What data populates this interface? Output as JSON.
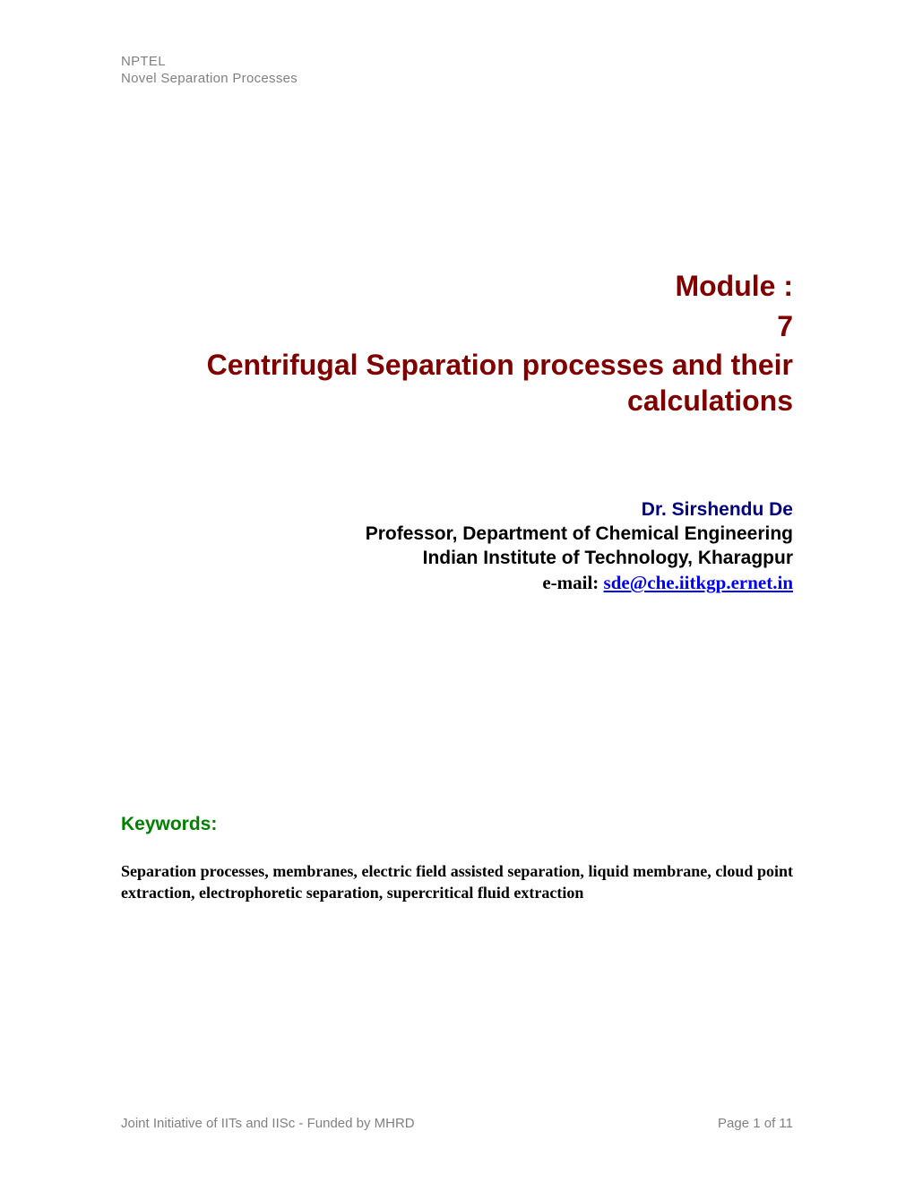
{
  "header": {
    "org": "NPTEL",
    "course": "Novel Separation Processes"
  },
  "module": {
    "label": "Module :",
    "number": "7",
    "title": "Centrifugal Separation processes and their calculations"
  },
  "author": {
    "name": "Dr. Sirshendu De",
    "title": "Professor, Department of Chemical Engineering",
    "institute": "Indian Institute of Technology, Kharagpur",
    "email_prefix": "e-mail: ",
    "email": "sde@che.iitkgp.ernet.in"
  },
  "keywords": {
    "heading": "Keywords:",
    "text": "Separation processes, membranes, electric field assisted separation, liquid membrane, cloud point extraction, electrophoretic separation, supercritical fluid extraction"
  },
  "footer": {
    "left": "Joint Initiative of IITs and IISc - Funded by MHRD",
    "right": "Page 1 of 11"
  },
  "colors": {
    "title_color": "#800000",
    "author_name_color": "#000080",
    "email_link_color": "#0000ff",
    "keywords_heading_color": "#008000",
    "header_footer_color": "#808080",
    "body_text_color": "#000000",
    "background_color": "#ffffff"
  },
  "typography": {
    "sans_family": "Arial",
    "serif_family": "Times New Roman",
    "title_fontsize": 32,
    "author_fontsize": 21,
    "keywords_heading_fontsize": 21,
    "keywords_text_fontsize": 18,
    "header_footer_fontsize": 15
  }
}
